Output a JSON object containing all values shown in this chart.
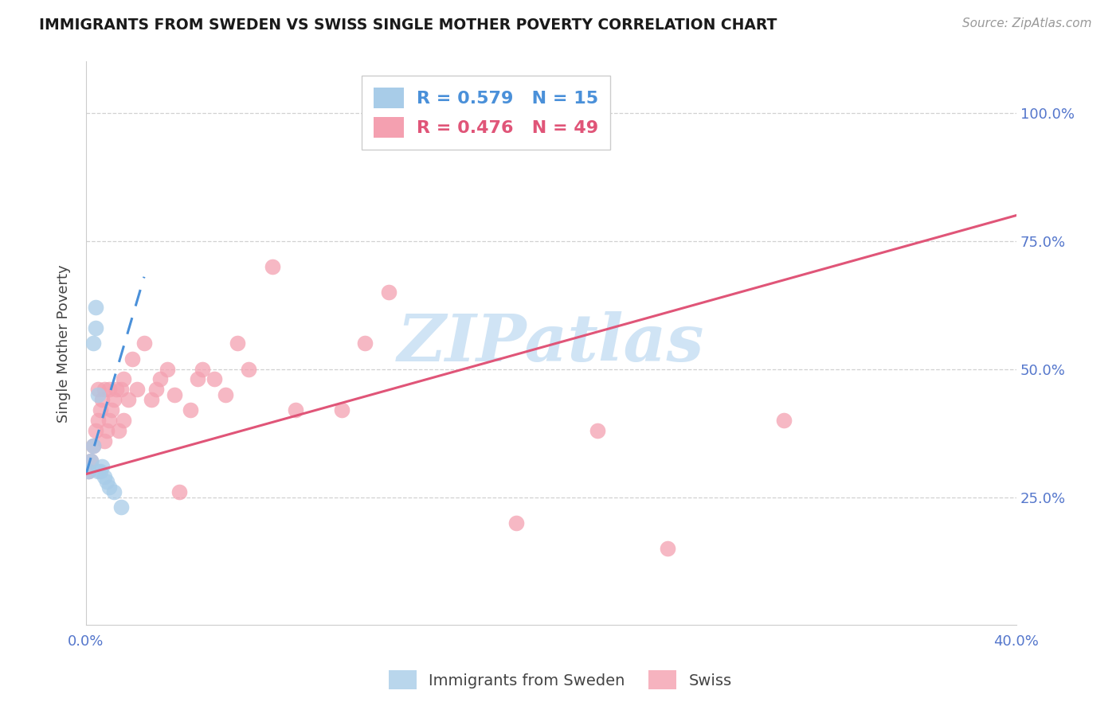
{
  "title": "IMMIGRANTS FROM SWEDEN VS SWISS SINGLE MOTHER POVERTY CORRELATION CHART",
  "source": "Source: ZipAtlas.com",
  "ylabel_label": "Single Mother Poverty",
  "x_min": 0.0,
  "x_max": 0.4,
  "y_min": 0.0,
  "y_max": 1.1,
  "y_ticks": [
    0.25,
    0.5,
    0.75,
    1.0
  ],
  "y_tick_labels": [
    "25.0%",
    "50.0%",
    "75.0%",
    "100.0%"
  ],
  "x_ticks": [
    0.0,
    0.4
  ],
  "x_tick_labels": [
    "0.0%",
    "40.0%"
  ],
  "sweden_R": 0.579,
  "sweden_N": 15,
  "swiss_R": 0.476,
  "swiss_N": 49,
  "sweden_color": "#a8cce8",
  "swiss_color": "#f4a0b0",
  "sweden_line_color": "#4a90d9",
  "swiss_line_color": "#e05578",
  "watermark": "ZIPatlas",
  "watermark_color": "#d0e4f5",
  "sweden_points_x": [
    0.001,
    0.002,
    0.003,
    0.003,
    0.004,
    0.004,
    0.005,
    0.005,
    0.006,
    0.007,
    0.008,
    0.009,
    0.01,
    0.012,
    0.015
  ],
  "sweden_points_y": [
    0.3,
    0.32,
    0.35,
    0.55,
    0.58,
    0.62,
    0.3,
    0.45,
    0.3,
    0.31,
    0.29,
    0.28,
    0.27,
    0.26,
    0.23
  ],
  "swiss_points_x": [
    0.001,
    0.002,
    0.003,
    0.004,
    0.005,
    0.005,
    0.006,
    0.007,
    0.008,
    0.008,
    0.009,
    0.01,
    0.01,
    0.011,
    0.012,
    0.013,
    0.014,
    0.015,
    0.016,
    0.016,
    0.018,
    0.02,
    0.022,
    0.025,
    0.028,
    0.03,
    0.032,
    0.035,
    0.038,
    0.04,
    0.045,
    0.048,
    0.05,
    0.055,
    0.06,
    0.065,
    0.07,
    0.08,
    0.09,
    0.11,
    0.12,
    0.13,
    0.15,
    0.17,
    0.185,
    0.2,
    0.22,
    0.25,
    0.3
  ],
  "swiss_points_y": [
    0.3,
    0.32,
    0.35,
    0.38,
    0.4,
    0.46,
    0.42,
    0.44,
    0.36,
    0.46,
    0.38,
    0.4,
    0.46,
    0.42,
    0.44,
    0.46,
    0.38,
    0.46,
    0.48,
    0.4,
    0.44,
    0.52,
    0.46,
    0.55,
    0.44,
    0.46,
    0.48,
    0.5,
    0.45,
    0.26,
    0.42,
    0.48,
    0.5,
    0.48,
    0.45,
    0.55,
    0.5,
    0.7,
    0.42,
    0.42,
    0.55,
    0.65,
    1.0,
    1.0,
    0.2,
    1.0,
    0.38,
    0.15,
    0.4
  ],
  "sweden_line_x": [
    0.0,
    0.025
  ],
  "sweden_line_y": [
    0.295,
    0.68
  ],
  "swiss_line_x": [
    0.0,
    0.4
  ],
  "swiss_line_y": [
    0.295,
    0.8
  ]
}
